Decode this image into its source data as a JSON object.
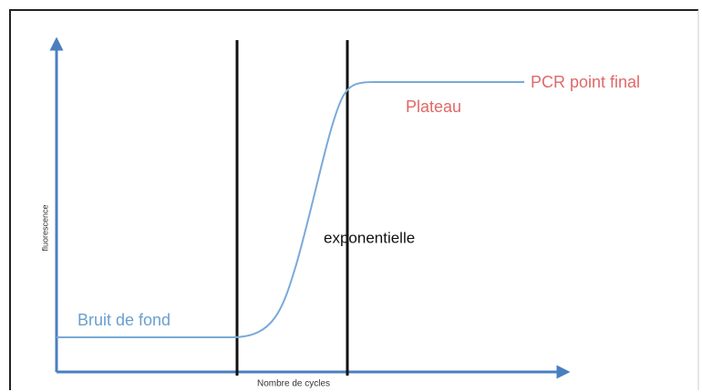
{
  "diagram": {
    "y_axis_label": "fluorescence",
    "x_axis_label": "Nombre de cycles",
    "phases": {
      "background": "Bruit de fond",
      "exponential": "exponentielle",
      "plateau": "Plateau",
      "endpoint": "PCR point final"
    }
  }
}
